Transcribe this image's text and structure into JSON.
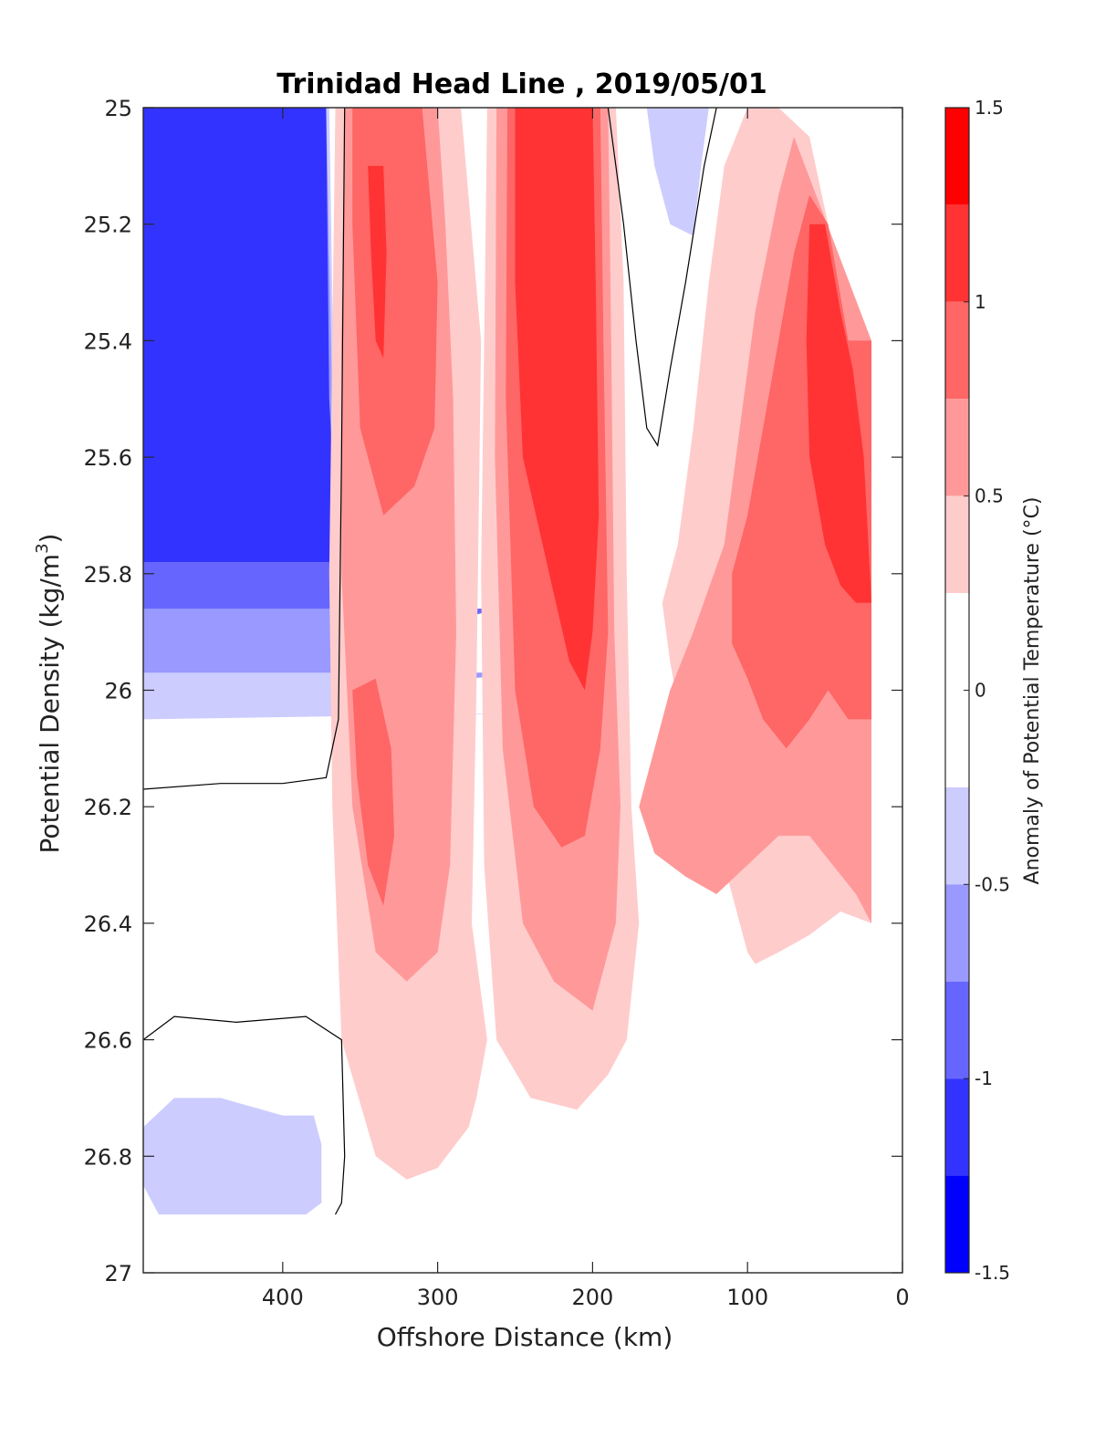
{
  "chart_data": {
    "type": "heatmap",
    "subtype": "filled-contour section",
    "title": "Trinidad Head Line , 2019/05/01",
    "xlabel": "Offshore Distance (km)",
    "ylabel": "Potential Density (kg/m",
    "ylabel_superscript": "3",
    "ylabel_close": ")",
    "colorbar_label": "Anomaly of Potential Temperature (°C)",
    "xlim": [
      490,
      0
    ],
    "x_reversed": true,
    "ylim": [
      25,
      27
    ],
    "y_reversed": true,
    "x_ticks": [
      400,
      300,
      200,
      100,
      0
    ],
    "x_tick_labels": [
      "400",
      "300",
      "200",
      "100",
      "0"
    ],
    "y_ticks": [
      25,
      25.2,
      25.4,
      25.6,
      25.8,
      26,
      26.2,
      26.4,
      26.6,
      26.8,
      27
    ],
    "y_tick_labels": [
      "25",
      "25.2",
      "25.4",
      "25.6",
      "25.8",
      "26",
      "26.2",
      "26.4",
      "26.6",
      "26.8",
      "27"
    ],
    "colorbar_ticks": [
      1.5,
      1,
      0.5,
      0,
      -0.5,
      -1,
      -1.5
    ],
    "colorbar_tick_labels": [
      "1.5",
      "1",
      "0.5",
      "0",
      "-0.5",
      "-1",
      "-1.5"
    ],
    "levels": [
      {
        "range": [
          1.25,
          1.5
        ],
        "color": "#ff0000"
      },
      {
        "range": [
          1.0,
          1.25
        ],
        "color": "#ff3333"
      },
      {
        "range": [
          0.75,
          1.0
        ],
        "color": "#ff6666"
      },
      {
        "range": [
          0.5,
          0.75
        ],
        "color": "#ff9999"
      },
      {
        "range": [
          0.25,
          0.5
        ],
        "color": "#ffcccc"
      },
      {
        "range": [
          -0.25,
          0.25
        ],
        "color": "#ffffff"
      },
      {
        "range": [
          -0.5,
          -0.25
        ],
        "color": "#ccccff"
      },
      {
        "range": [
          -0.75,
          -0.5
        ],
        "color": "#9999ff"
      },
      {
        "range": [
          -1.0,
          -0.75
        ],
        "color": "#6666ff"
      },
      {
        "range": [
          -1.25,
          -1.0
        ],
        "color": "#3333ff"
      },
      {
        "range": [
          -1.5,
          -1.25
        ],
        "color": "#0000ff"
      }
    ],
    "regions": [
      {
        "name": "offshore-cold-1",
        "color": "#ccccff",
        "points": [
          [
            490,
            25
          ],
          [
            370,
            25
          ],
          [
            365,
            25.8
          ],
          [
            360,
            26.0
          ],
          [
            360,
            26.04
          ],
          [
            340,
            26.04
          ],
          [
            300,
            26.04
          ],
          [
            250,
            26.04
          ],
          [
            490,
            26.05
          ]
        ]
      },
      {
        "name": "offshore-cold-2",
        "color": "#9999ff",
        "points": [
          [
            490,
            25
          ],
          [
            372,
            25
          ],
          [
            368,
            25.5
          ],
          [
            365,
            25.8
          ],
          [
            362,
            25.95
          ],
          [
            345,
            26.02
          ],
          [
            300,
            26.0
          ],
          [
            280,
            25.98
          ],
          [
            240,
            25.97
          ],
          [
            200,
            25.97
          ],
          [
            490,
            25.97
          ]
        ]
      },
      {
        "name": "offshore-cold-3",
        "color": "#6666ff",
        "points": [
          [
            490,
            25
          ],
          [
            374,
            25
          ],
          [
            372,
            25.4
          ],
          [
            368,
            25.8
          ],
          [
            360,
            25.88
          ],
          [
            330,
            25.9
          ],
          [
            290,
            25.88
          ],
          [
            260,
            25.86
          ],
          [
            490,
            25.86
          ]
        ]
      },
      {
        "name": "offshore-cold-4",
        "color": "#3333ff",
        "points": [
          [
            490,
            25
          ],
          [
            372,
            25
          ],
          [
            370,
            25.5
          ],
          [
            366,
            25.7
          ],
          [
            352,
            25.75
          ],
          [
            320,
            25.8
          ],
          [
            300,
            25.84
          ],
          [
            280,
            25.78
          ],
          [
            490,
            25.78
          ]
        ]
      },
      {
        "name": "warm-band-west",
        "color": "#ffcccc",
        "points": [
          [
            366,
            25
          ],
          [
            330,
            25
          ],
          [
            300,
            25
          ],
          [
            285,
            25
          ],
          [
            272,
            25.4
          ],
          [
            275,
            26.0
          ],
          [
            278,
            26.4
          ],
          [
            268,
            26.6
          ],
          [
            275,
            26.7
          ],
          [
            280,
            26.75
          ],
          [
            300,
            26.82
          ],
          [
            320,
            26.84
          ],
          [
            340,
            26.8
          ],
          [
            362,
            26.6
          ],
          [
            368,
            26.2
          ],
          [
            370,
            25.8
          ],
          [
            368,
            25.4
          ]
        ]
      },
      {
        "name": "warm-band-west-mid",
        "color": "#ff9999",
        "points": [
          [
            360,
            25
          ],
          [
            300,
            25
          ],
          [
            295,
            25.2
          ],
          [
            290,
            25.5
          ],
          [
            288,
            25.9
          ],
          [
            292,
            26.3
          ],
          [
            300,
            26.45
          ],
          [
            320,
            26.5
          ],
          [
            340,
            26.45
          ],
          [
            355,
            26.2
          ],
          [
            362,
            25.8
          ],
          [
            362,
            25.4
          ]
        ]
      },
      {
        "name": "warm-band-west-core",
        "color": "#ff6666",
        "points": [
          [
            355,
            25
          ],
          [
            310,
            25
          ],
          [
            305,
            25.15
          ],
          [
            300,
            25.3
          ],
          [
            302,
            25.55
          ],
          [
            315,
            25.65
          ],
          [
            335,
            25.7
          ],
          [
            350,
            25.55
          ],
          [
            355,
            25.2
          ]
        ]
      },
      {
        "name": "warm-band-west-core-2",
        "color": "#ff6666",
        "points": [
          [
            355,
            26.0
          ],
          [
            340,
            25.98
          ],
          [
            330,
            26.1
          ],
          [
            328,
            26.25
          ],
          [
            335,
            26.37
          ],
          [
            345,
            26.3
          ],
          [
            352,
            26.15
          ]
        ]
      },
      {
        "name": "warm-band-west-hot",
        "color": "#ff3333",
        "points": [
          [
            345,
            25.1
          ],
          [
            335,
            25.1
          ],
          [
            333,
            25.25
          ],
          [
            335,
            25.43
          ],
          [
            340,
            25.4
          ],
          [
            343,
            25.25
          ]
        ]
      },
      {
        "name": "warm-band-center",
        "color": "#ffcccc",
        "points": [
          [
            268,
            25
          ],
          [
            185,
            25
          ],
          [
            180,
            25.3
          ],
          [
            178,
            25.8
          ],
          [
            175,
            26.2
          ],
          [
            170,
            26.4
          ],
          [
            178,
            26.6
          ],
          [
            190,
            26.66
          ],
          [
            210,
            26.72
          ],
          [
            240,
            26.7
          ],
          [
            262,
            26.6
          ],
          [
            270,
            26.3
          ],
          [
            272,
            25.8
          ],
          [
            270,
            25.4
          ]
        ]
      },
      {
        "name": "warm-band-center-mid",
        "color": "#ff9999",
        "points": [
          [
            262,
            25
          ],
          [
            190,
            25
          ],
          [
            188,
            25.4
          ],
          [
            186,
            25.9
          ],
          [
            182,
            26.2
          ],
          [
            185,
            26.4
          ],
          [
            200,
            26.55
          ],
          [
            225,
            26.5
          ],
          [
            245,
            26.4
          ],
          [
            258,
            26.1
          ],
          [
            263,
            25.6
          ]
        ]
      },
      {
        "name": "warm-band-center-core",
        "color": "#ff6666",
        "points": [
          [
            255,
            25
          ],
          [
            195,
            25
          ],
          [
            193,
            25.4
          ],
          [
            190,
            25.9
          ],
          [
            195,
            26.1
          ],
          [
            205,
            26.25
          ],
          [
            220,
            26.27
          ],
          [
            238,
            26.2
          ],
          [
            250,
            26.0
          ],
          [
            256,
            25.5
          ]
        ]
      },
      {
        "name": "warm-band-center-hot",
        "color": "#ff3333",
        "points": [
          [
            250,
            25
          ],
          [
            200,
            25
          ],
          [
            198,
            25.3
          ],
          [
            196,
            25.7
          ],
          [
            200,
            25.9
          ],
          [
            205,
            26.0
          ],
          [
            215,
            25.95
          ],
          [
            228,
            25.8
          ],
          [
            245,
            25.6
          ],
          [
            250,
            25.3
          ]
        ]
      },
      {
        "name": "warm-band-east",
        "color": "#ffcccc",
        "points": [
          [
            155,
            25.85
          ],
          [
            150,
            25.95
          ],
          [
            140,
            26.1
          ],
          [
            125,
            26.2
          ],
          [
            110,
            26.35
          ],
          [
            100,
            26.45
          ],
          [
            95,
            26.47
          ],
          [
            80,
            26.45
          ],
          [
            60,
            26.42
          ],
          [
            40,
            26.38
          ],
          [
            20,
            26.4
          ],
          [
            20,
            25.4
          ],
          [
            40,
            25.3
          ],
          [
            60,
            25.05
          ],
          [
            80,
            25.0
          ],
          [
            100,
            25.0
          ],
          [
            115,
            25.1
          ],
          [
            125,
            25.3
          ],
          [
            135,
            25.55
          ],
          [
            145,
            25.75
          ]
        ]
      },
      {
        "name": "warm-band-east-mid",
        "color": "#ff9999",
        "points": [
          [
            170,
            26.2
          ],
          [
            160,
            26.1
          ],
          [
            150,
            26.0
          ],
          [
            135,
            25.9
          ],
          [
            115,
            25.75
          ],
          [
            105,
            25.55
          ],
          [
            95,
            25.35
          ],
          [
            80,
            25.15
          ],
          [
            70,
            25.05
          ],
          [
            20,
            25.4
          ],
          [
            20,
            26.4
          ],
          [
            30,
            26.35
          ],
          [
            45,
            26.3
          ],
          [
            60,
            26.25
          ],
          [
            80,
            26.25
          ],
          [
            100,
            26.3
          ],
          [
            120,
            26.35
          ],
          [
            140,
            26.32
          ],
          [
            160,
            26.28
          ]
        ]
      },
      {
        "name": "warm-band-east-core",
        "color": "#ff6666",
        "points": [
          [
            110,
            25.8
          ],
          [
            100,
            25.7
          ],
          [
            90,
            25.55
          ],
          [
            80,
            25.4
          ],
          [
            70,
            25.25
          ],
          [
            60,
            25.15
          ],
          [
            48,
            25.2
          ],
          [
            35,
            25.4
          ],
          [
            20,
            25.4
          ],
          [
            20,
            26.05
          ],
          [
            35,
            26.05
          ],
          [
            48,
            26.0
          ],
          [
            60,
            26.05
          ],
          [
            75,
            26.1
          ],
          [
            90,
            26.05
          ],
          [
            100,
            25.98
          ],
          [
            110,
            25.92
          ]
        ]
      },
      {
        "name": "warm-band-east-hot",
        "color": "#ff3333",
        "points": [
          [
            60,
            25.2
          ],
          [
            50,
            25.2
          ],
          [
            40,
            25.35
          ],
          [
            32,
            25.45
          ],
          [
            25,
            25.6
          ],
          [
            20,
            25.85
          ],
          [
            20,
            25.85
          ],
          [
            30,
            25.85
          ],
          [
            40,
            25.82
          ],
          [
            50,
            25.75
          ],
          [
            60,
            25.6
          ],
          [
            62,
            25.4
          ]
        ]
      },
      {
        "name": "cold-patch-deep",
        "color": "#ccccff",
        "points": [
          [
            490,
            26.75
          ],
          [
            470,
            26.7
          ],
          [
            440,
            26.7
          ],
          [
            400,
            26.73
          ],
          [
            380,
            26.73
          ],
          [
            375,
            26.78
          ],
          [
            375,
            26.88
          ],
          [
            385,
            26.9
          ],
          [
            420,
            26.9
          ],
          [
            460,
            26.9
          ],
          [
            480,
            26.9
          ],
          [
            490,
            26.85
          ]
        ]
      },
      {
        "name": "cold-patch-east",
        "color": "#ccccff",
        "points": [
          [
            190,
            25.0
          ],
          [
            165,
            25.0
          ],
          [
            160,
            25.1
          ],
          [
            150,
            25.2
          ],
          [
            135,
            25.22
          ],
          [
            130,
            25.1
          ],
          [
            125,
            25.0
          ]
        ]
      }
    ],
    "zero_contours": [
      {
        "name": "zero-contour-west",
        "points": [
          [
            490,
            26.17
          ],
          [
            440,
            26.16
          ],
          [
            400,
            26.16
          ],
          [
            372,
            26.15
          ],
          [
            364,
            26.05
          ],
          [
            362,
            25.6
          ],
          [
            360,
            25.0
          ]
        ]
      },
      {
        "name": "zero-contour-east",
        "points": [
          [
            190,
            25.0
          ],
          [
            180,
            25.2
          ],
          [
            172,
            25.4
          ],
          [
            165,
            25.55
          ],
          [
            158,
            25.58
          ],
          [
            150,
            25.45
          ],
          [
            140,
            25.3
          ],
          [
            128,
            25.1
          ],
          [
            120,
            25.0
          ]
        ]
      },
      {
        "name": "zero-contour-deep-west",
        "points": [
          [
            490,
            26.6
          ],
          [
            470,
            26.56
          ],
          [
            430,
            26.57
          ],
          [
            385,
            26.56
          ],
          [
            362,
            26.6
          ],
          [
            360,
            26.8
          ],
          [
            362,
            26.88
          ],
          [
            366,
            26.9
          ]
        ]
      }
    ]
  }
}
